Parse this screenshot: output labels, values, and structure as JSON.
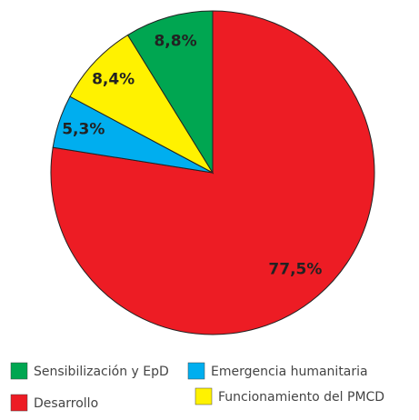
{
  "chart_data": {
    "type": "pie",
    "categories": [
      "Desarrollo",
      "Emergencia humanitaria",
      "Funcionamiento del PMCD",
      "Sensibilización y EpD"
    ],
    "values": [
      77.5,
      5.3,
      8.4,
      8.8
    ],
    "value_labels": [
      "77,5%",
      "5,3%",
      "8,4%",
      "8,8%"
    ],
    "colors": [
      "#ed1c24",
      "#00aeef",
      "#fff200",
      "#00a651"
    ]
  }
}
